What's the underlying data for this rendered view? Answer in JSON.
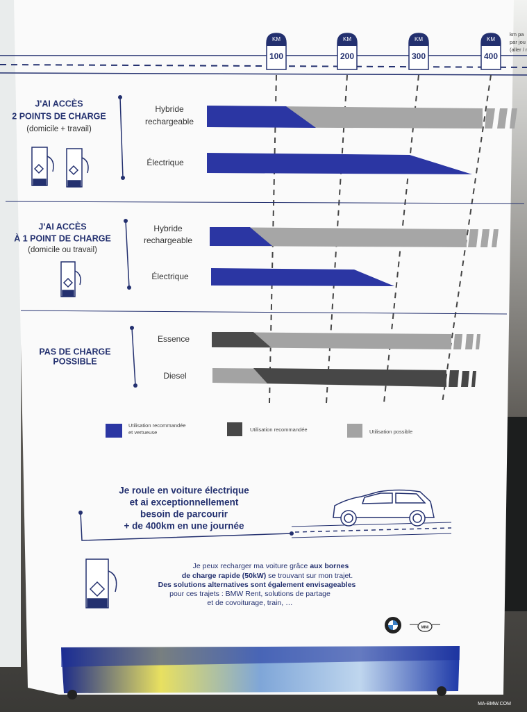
{
  "scale": {
    "markers": [
      {
        "unit": "KM",
        "value": "100"
      },
      {
        "unit": "KM",
        "value": "200"
      },
      {
        "unit": "KM",
        "value": "300"
      },
      {
        "unit": "KM",
        "value": "400"
      }
    ],
    "note": [
      "km pa",
      "par jou",
      "(aller / r"
    ]
  },
  "sections": [
    {
      "title": [
        "J'AI ACCÈS",
        "2 POINTS DE CHARGE"
      ],
      "subtitle": "(domicile + travail)",
      "rows": [
        {
          "label": [
            "Hybride",
            "rechargeable"
          ]
        },
        {
          "label": [
            "Électrique"
          ]
        }
      ]
    },
    {
      "title": [
        "J'AI ACCÈS",
        "À 1 POINT DE CHARGE"
      ],
      "subtitle": "(domicile ou travail)",
      "rows": [
        {
          "label": [
            "Hybride",
            "rechargeable"
          ]
        },
        {
          "label": [
            "Électrique"
          ]
        }
      ]
    },
    {
      "title": [
        "PAS DE CHARGE",
        "POSSIBLE"
      ],
      "rows": [
        {
          "label": [
            "Essence"
          ]
        },
        {
          "label": [
            "Diesel"
          ]
        }
      ]
    }
  ],
  "legend": [
    {
      "label": [
        "Utilisation recommandée",
        "et vertueuse"
      ]
    },
    {
      "label": [
        "Utilisation recommandée"
      ]
    },
    {
      "label": [
        "Utilisation possible"
      ]
    }
  ],
  "callout": [
    "Je roule en voiture électrique",
    "et ai exceptionnellement",
    "besoin de parcourir",
    "+ de 400km en une journée"
  ],
  "info": [
    [
      "Je peux recharger ma voiture grâce ",
      "aux bornes"
    ],
    [
      "de charge rapide (50kW)",
      " se trouvant sur mon trajet."
    ],
    [
      "Des solutions alternatives sont également envisageables"
    ],
    [
      "pour ces trajets : BMW Rent, solutions de partage"
    ],
    [
      "et de covoiturage, train, …"
    ]
  ],
  "brand": "MINI",
  "watermark": "MA-BMW.COM"
}
